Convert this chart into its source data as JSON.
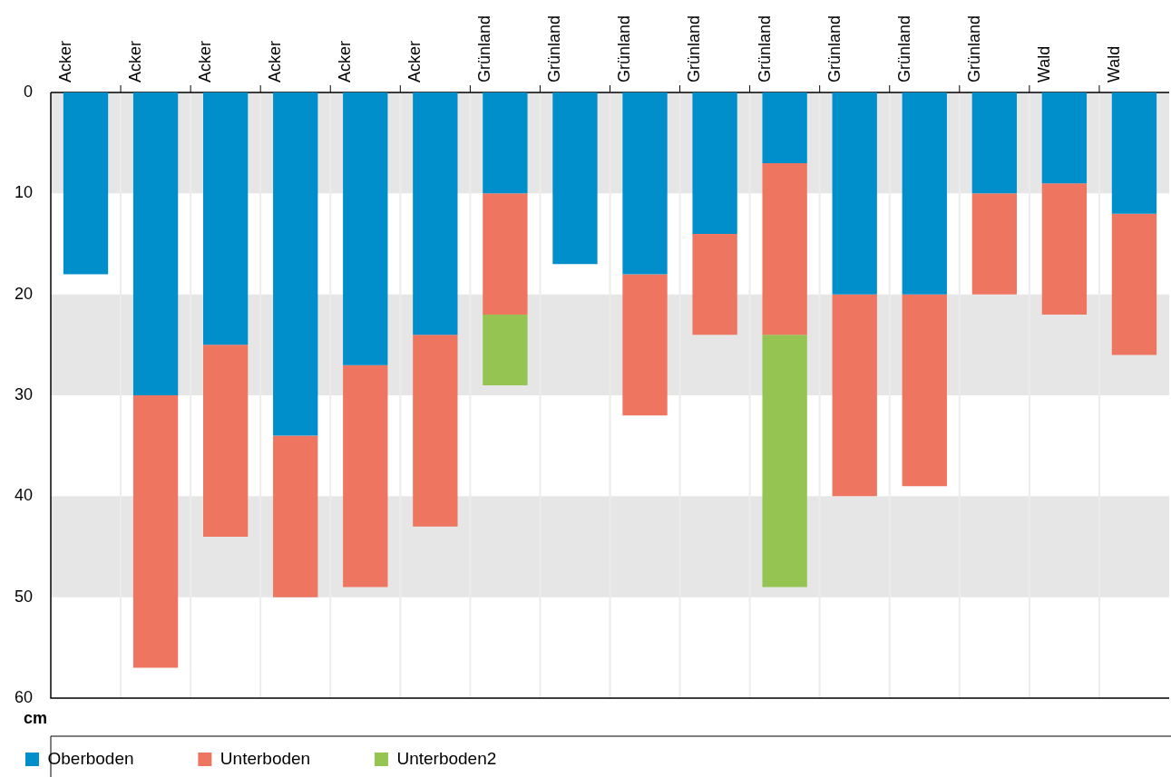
{
  "chart_data": {
    "type": "bar",
    "stacked": true,
    "ylabel": "cm",
    "categories": [
      "Acker",
      "Acker",
      "Acker",
      "Acker",
      "Acker",
      "Acker",
      "Grünland",
      "Grünland",
      "Grünland",
      "Grünland",
      "Grünland",
      "Grünland",
      "Grünland",
      "Grünland",
      "Wald",
      "Wald"
    ],
    "series": [
      {
        "name": "Oberboden",
        "color": "#008fcb",
        "values": [
          18,
          30,
          25,
          34,
          27,
          24,
          10,
          17,
          18,
          14,
          7,
          20,
          20,
          10,
          9,
          12
        ]
      },
      {
        "name": "Unterboden",
        "color": "#ee7560",
        "values": [
          null,
          27,
          19,
          16,
          22,
          19,
          12,
          null,
          14,
          10,
          17,
          20,
          19,
          10,
          13,
          14
        ]
      },
      {
        "name": "Unterboden2",
        "color": "#95c452",
        "values": [
          null,
          null,
          null,
          null,
          null,
          null,
          7,
          null,
          null,
          null,
          25,
          null,
          null,
          null,
          null,
          null
        ]
      }
    ],
    "ylim": [
      60,
      0
    ],
    "yticks": [
      0,
      10,
      20,
      30,
      40,
      50,
      60
    ],
    "grid": true,
    "legend": "bottom"
  }
}
